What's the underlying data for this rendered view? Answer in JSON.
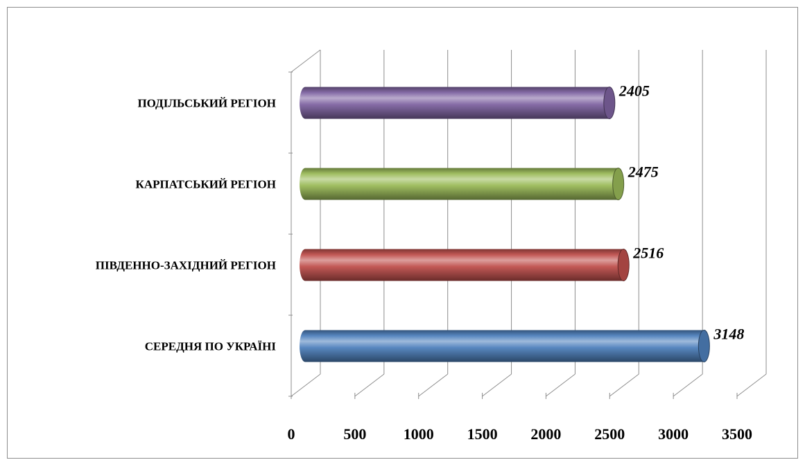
{
  "chart_data": {
    "type": "bar",
    "orientation": "horizontal",
    "style": "3d-cylinder",
    "categories": [
      "СЕРЕДНЯ ПО УКРАЇНІ",
      "ПІВДЕННО-ЗАХІДНИЙ РЕГІОН",
      "КАРПАТСЬКИЙ РЕГІОН",
      "ПОДІЛЬСЬКИЙ РЕГІОН"
    ],
    "values": [
      3148,
      2516,
      2475,
      2405
    ],
    "data_labels": [
      "3148",
      "2516",
      "2475",
      "2405"
    ],
    "bar_colors": [
      "#4f81bd",
      "#c0504d",
      "#9bbb59",
      "#8064a2"
    ],
    "xlim": [
      0,
      3500
    ],
    "xticks": [
      0,
      500,
      1000,
      1500,
      2000,
      2500,
      3000,
      3500
    ],
    "xtick_labels": [
      "0",
      "500",
      "1000",
      "1500",
      "2000",
      "2500",
      "3000",
      "3500"
    ],
    "grid": "vertical",
    "legend": "none",
    "title": "",
    "xlabel": "",
    "ylabel": ""
  }
}
